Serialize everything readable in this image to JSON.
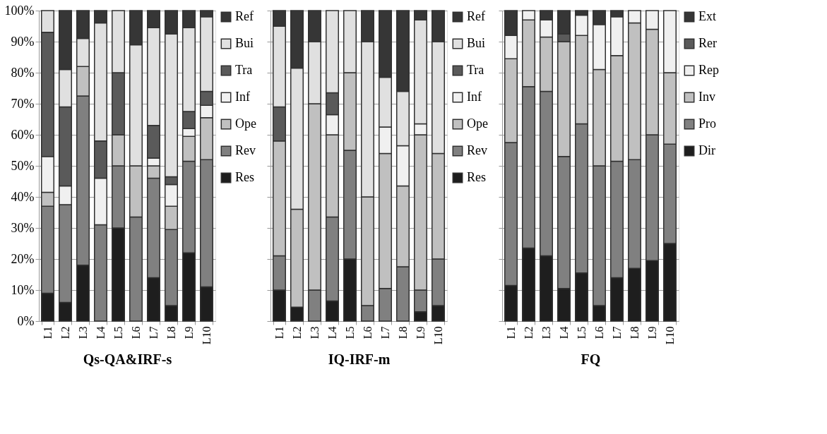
{
  "chart_data": [
    {
      "type": "bar",
      "stacked": true,
      "xlabel": "Qs-QA&IRF-s",
      "categories": [
        "L1",
        "L2",
        "L3",
        "L4",
        "L5",
        "L6",
        "L7",
        "L8",
        "L9",
        "L10"
      ],
      "ylim": [
        0,
        100
      ],
      "yticks": [
        {
          "value": 0,
          "label": "0%"
        },
        {
          "value": 10,
          "label": "10%"
        },
        {
          "value": 20,
          "label": "20%"
        },
        {
          "value": 30,
          "label": "30%"
        },
        {
          "value": 40,
          "label": "40%"
        },
        {
          "value": 50,
          "label": "50%"
        },
        {
          "value": 60,
          "label": "60%"
        },
        {
          "value": 70,
          "label": "70%"
        },
        {
          "value": 80,
          "label": "80%"
        },
        {
          "value": 90,
          "label": "90%"
        },
        {
          "value": 100,
          "label": "100%"
        }
      ],
      "grid": "y",
      "legend": "right",
      "series": [
        {
          "name": "Res",
          "color": "#1e1e1e",
          "values": [
            9,
            6,
            18,
            0,
            30,
            0,
            14,
            5,
            22,
            11
          ]
        },
        {
          "name": "Rev",
          "color": "#808080",
          "values": [
            28,
            31.5,
            54.5,
            31,
            20,
            33.5,
            32,
            24.5,
            29.5,
            41
          ]
        },
        {
          "name": "Ope",
          "color": "#c0c0c0",
          "values": [
            4.5,
            0,
            9.5,
            0,
            10,
            16.5,
            4,
            7.5,
            8,
            13.5
          ]
        },
        {
          "name": "Inf",
          "color": "#f0f0f0",
          "values": [
            11.5,
            6,
            0,
            15,
            0,
            0,
            2.5,
            7,
            2.5,
            4
          ]
        },
        {
          "name": "Tra",
          "color": "#5a5a5a",
          "values": [
            40,
            25.5,
            0,
            12,
            20,
            0,
            10.5,
            2.5,
            5.5,
            4.5
          ]
        },
        {
          "name": "Bui",
          "color": "#e0e0e0",
          "values": [
            7,
            12,
            9,
            38,
            20,
            39,
            31.5,
            46,
            27,
            24
          ]
        },
        {
          "name": "Ref",
          "color": "#363636",
          "values": [
            0,
            19,
            9,
            4,
            0,
            11,
            5.5,
            7.5,
            5.5,
            2
          ]
        }
      ]
    },
    {
      "type": "bar",
      "stacked": true,
      "xlabel": "IQ-IRF-m",
      "categories": [
        "L1",
        "L2",
        "L3",
        "L4",
        "L5",
        "L6",
        "L7",
        "L8",
        "L9",
        "L10"
      ],
      "ylim": [
        0,
        100
      ],
      "yticks": [
        0,
        10,
        20,
        30,
        40,
        50,
        60,
        70,
        80,
        90,
        100
      ],
      "tick_labels": "x",
      "grid": "y",
      "legend": "right",
      "series": [
        {
          "name": "Res",
          "color": "#1e1e1e",
          "values": [
            10,
            4.5,
            0,
            6.5,
            20,
            0,
            0,
            0,
            3,
            5
          ]
        },
        {
          "name": "Rev",
          "color": "#808080",
          "values": [
            11,
            0,
            10,
            27,
            35,
            5,
            10.5,
            17.5,
            7,
            15
          ]
        },
        {
          "name": "Ope",
          "color": "#c0c0c0",
          "values": [
            37,
            31.5,
            60,
            26.5,
            25,
            35,
            43.5,
            26,
            50,
            34
          ]
        },
        {
          "name": "Inf",
          "color": "#f0f0f0",
          "values": [
            0,
            0,
            0,
            6.5,
            0,
            0,
            8.5,
            13,
            3.5,
            0
          ]
        },
        {
          "name": "Tra",
          "color": "#5a5a5a",
          "values": [
            11,
            0,
            0,
            7,
            0,
            0,
            0,
            0,
            0,
            0
          ]
        },
        {
          "name": "Bui",
          "color": "#e0e0e0",
          "values": [
            26,
            45.5,
            20,
            26.5,
            20,
            50,
            16,
            17.5,
            33.5,
            36
          ]
        },
        {
          "name": "Ref",
          "color": "#363636",
          "values": [
            5,
            18.5,
            10,
            0,
            0,
            10,
            21.5,
            26,
            3,
            10
          ]
        }
      ]
    },
    {
      "type": "bar",
      "stacked": true,
      "xlabel": "FQ",
      "categories": [
        "L1",
        "L2",
        "L3",
        "L4",
        "L5",
        "L6",
        "L7",
        "L8",
        "L9",
        "L10"
      ],
      "ylim": [
        0,
        100
      ],
      "yticks": [
        0,
        10,
        20,
        30,
        40,
        50,
        60,
        70,
        80,
        90,
        100
      ],
      "tick_labels": "x",
      "grid": "y",
      "legend": "right",
      "series": [
        {
          "name": "Dir",
          "color": "#1e1e1e",
          "values": [
            11.5,
            23.5,
            21,
            10.5,
            15.5,
            5,
            14,
            17,
            19.5,
            25
          ]
        },
        {
          "name": "Pro",
          "color": "#808080",
          "values": [
            46,
            52,
            53,
            42.5,
            48,
            45,
            37.5,
            35,
            40.5,
            32
          ]
        },
        {
          "name": "Inv",
          "color": "#c0c0c0",
          "values": [
            27,
            21.5,
            17.5,
            37,
            28.5,
            31,
            34,
            44,
            34,
            23
          ]
        },
        {
          "name": "Rep",
          "color": "#f0f0f0",
          "values": [
            7.5,
            3,
            5.5,
            0,
            6.5,
            14.5,
            12.5,
            4,
            6,
            20
          ]
        },
        {
          "name": "Rer",
          "color": "#5a5a5a",
          "values": [
            0,
            0,
            0,
            2.5,
            0,
            0,
            0,
            0,
            0,
            0
          ]
        },
        {
          "name": "Ext",
          "color": "#363636",
          "values": [
            8,
            0,
            3,
            7.5,
            1.5,
            4.5,
            2,
            0,
            0,
            0
          ]
        }
      ]
    }
  ]
}
